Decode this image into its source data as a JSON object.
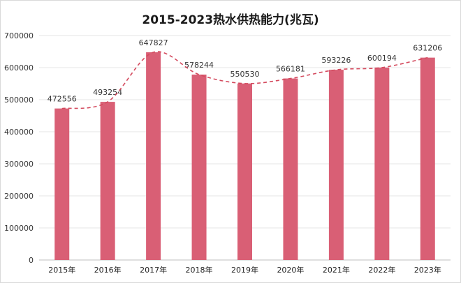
{
  "chart_data": {
    "type": "bar",
    "title": "2015-2023热水供热能力(兆瓦)",
    "categories": [
      "2015年",
      "2016年",
      "2017年",
      "2018年",
      "2019年",
      "2020年",
      "2021年",
      "2022年",
      "2023年"
    ],
    "values": [
      472556,
      493254,
      647827,
      578244,
      550530,
      566181,
      593226,
      600194,
      631206
    ],
    "data_labels": [
      "472556",
      "493254",
      "647827",
      "578244",
      "550530",
      "566181",
      "593226",
      "600194",
      "631206"
    ],
    "ylim": [
      0,
      700000
    ],
    "yticks": [
      "0",
      "100000",
      "200000",
      "300000",
      "400000",
      "500000",
      "600000",
      "700000"
    ],
    "grid": true,
    "trendline": "dashed smooth",
    "colors": {
      "bar": "#d95f75",
      "trend": "#d44a5e",
      "grid": "#e6e6e6"
    }
  }
}
